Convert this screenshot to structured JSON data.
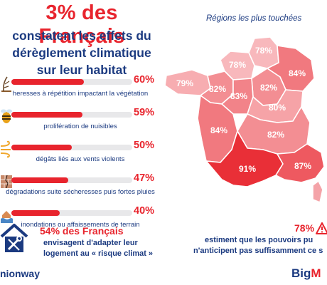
{
  "header": {
    "title": "3% des Français",
    "subtitle_lines": [
      "constatent les effets du",
      "dérèglement climatique",
      "sur leur habitat"
    ]
  },
  "chart_data": [
    {
      "type": "bar",
      "title": "",
      "categories": [
        "heresses à répétition impactant la végétation",
        "prolifération de nuisibles",
        "dégâts liés aux vents violents",
        "dégradations suite sécheresses puis fortes pluies",
        "inondations ou affaissements de terrain"
      ],
      "values": [
        60,
        59,
        50,
        47,
        40
      ],
      "value_labels": [
        "60%",
        "59%",
        "50%",
        "47%",
        "40%"
      ],
      "ylim": [
        0,
        100
      ],
      "icons": [
        "drought-icon",
        "wasp-icon",
        "wind-icon",
        "cracked-wall-icon",
        "flood-icon"
      ]
    },
    {
      "type": "heatmap",
      "title": "Régions les plus touchées",
      "regions": [
        {
          "label": "78%",
          "value": 78
        },
        {
          "label": "78%",
          "value": 78
        },
        {
          "label": "79%",
          "value": 79
        },
        {
          "label": "82%",
          "value": 82
        },
        {
          "label": "84%",
          "value": 84
        },
        {
          "label": "82%",
          "value": 82
        },
        {
          "label": "83%",
          "value": 83
        },
        {
          "label": "80%",
          "value": 80
        },
        {
          "label": "84%",
          "value": 84
        },
        {
          "label": "82%",
          "value": 82
        },
        {
          "label": "91%",
          "value": 91
        },
        {
          "label": "87%",
          "value": 87
        }
      ]
    }
  ],
  "stat_left": {
    "headline": "54% des Français",
    "lines": [
      "envisagent d'adapter leur",
      "logement au « risque climat »"
    ]
  },
  "stat_right": {
    "headline": "78%",
    "line1": "estiment que les pouvoirs pu",
    "line2": "n'anticipent pas suffisamment ce s"
  },
  "brands": {
    "left": "nionway",
    "right_a": "Big",
    "right_b": "M"
  },
  "colors": {
    "accent": "#e8242d",
    "navy": "#1b3a80",
    "track": "#e8e8ea"
  }
}
